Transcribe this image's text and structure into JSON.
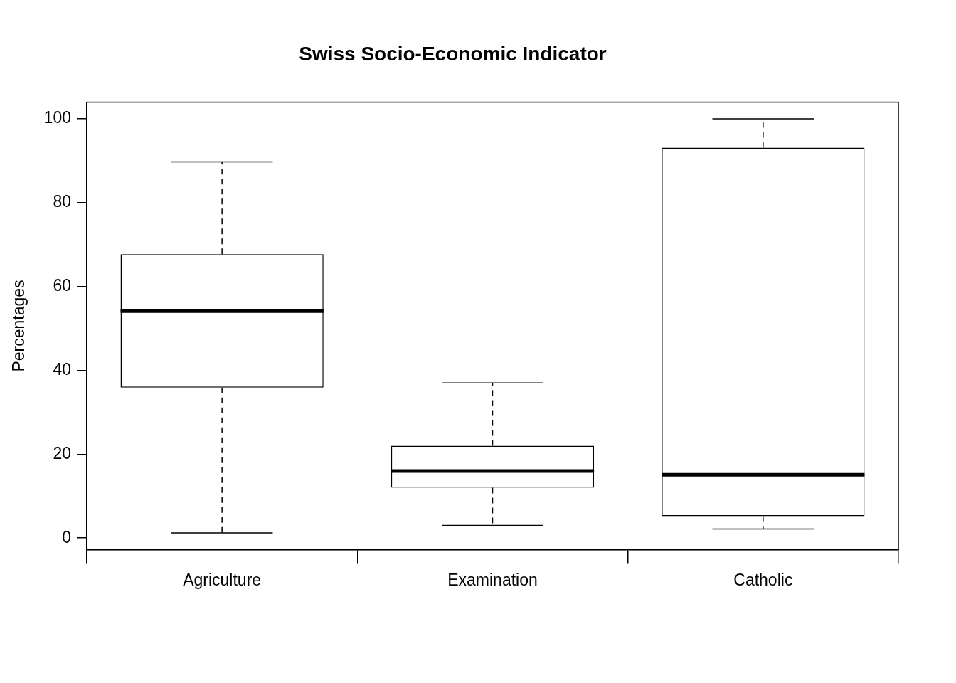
{
  "chart_data": {
    "type": "boxplot",
    "title": "Swiss Socio-Economic Indicator",
    "y_label": "Percentages",
    "categories": [
      "Agriculture",
      "Examination",
      "Catholic"
    ],
    "min": [
      1.2,
      3,
      2.15
    ],
    "q1": [
      35.9,
      12,
      5.2
    ],
    "median": [
      54.1,
      16,
      15.1
    ],
    "q3": [
      67.7,
      22,
      93.1
    ],
    "max": [
      89.7,
      37,
      100
    ],
    "color": "#000000",
    "ylim": [
      -2.75,
      103.95
    ],
    "yticks": [
      0,
      20,
      40,
      60,
      80,
      100
    ],
    "grid": false
  }
}
